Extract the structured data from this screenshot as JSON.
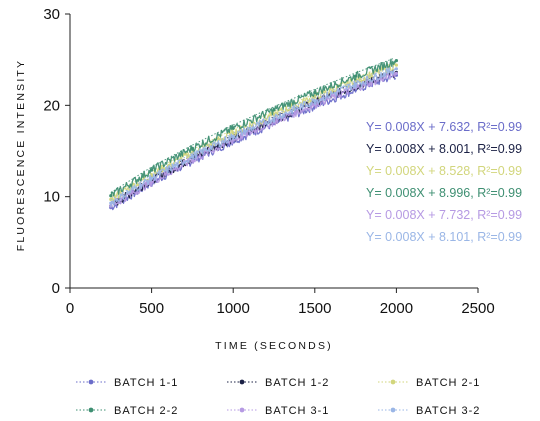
{
  "chart_data": {
    "type": "line",
    "xlabel": "TIME (SECONDS)",
    "ylabel": "FLUORESCENCE INTENSITY",
    "xlim": [
      0,
      2500
    ],
    "ylim": [
      0,
      30
    ],
    "xticks": [
      0,
      500,
      1000,
      1500,
      2000,
      2500
    ],
    "yticks": [
      0,
      10,
      20,
      30
    ],
    "grid": false,
    "legend_position": "bottom",
    "series": [
      {
        "name": "BATCH 1-1",
        "color": "#6a6cc9",
        "x": [
          250,
          500,
          750,
          1000,
          1250,
          1500,
          1750,
          2000
        ],
        "y": [
          8.8,
          11.5,
          13.9,
          16.1,
          18.0,
          19.9,
          21.7,
          23.3
        ],
        "equation": "Y= 0.008X + 7.632, R²=0.99"
      },
      {
        "name": "BATCH 1-2",
        "color": "#1b2145",
        "x": [
          250,
          500,
          750,
          1000,
          1250,
          1500,
          1750,
          2000
        ],
        "y": [
          9.0,
          11.8,
          14.2,
          16.4,
          18.4,
          20.3,
          22.1,
          23.6
        ],
        "equation": "Y= 0.008X + 8.001, R²=0.99"
      },
      {
        "name": "BATCH 2-1",
        "color": "#d2d67c",
        "x": [
          250,
          500,
          750,
          1000,
          1250,
          1500,
          1750,
          2000
        ],
        "y": [
          9.7,
          12.4,
          14.8,
          17.0,
          19.0,
          20.9,
          22.7,
          24.4
        ],
        "equation": "Y= 0.008X + 8.528, R²=0.99"
      },
      {
        "name": "BATCH 2-2",
        "color": "#3e8f72",
        "x": [
          250,
          500,
          750,
          1000,
          1250,
          1500,
          1750,
          2000
        ],
        "y": [
          10.1,
          12.9,
          15.3,
          17.5,
          19.5,
          21.4,
          23.2,
          24.9
        ],
        "equation": "Y= 0.008X + 8.996, R²=0.99"
      },
      {
        "name": "BATCH 3-1",
        "color": "#b69ae3",
        "x": [
          250,
          500,
          750,
          1000,
          1250,
          1500,
          1750,
          2000
        ],
        "y": [
          9.0,
          11.6,
          14.0,
          16.2,
          18.2,
          20.1,
          21.9,
          23.5
        ],
        "equation": "Y= 0.008X + 7.732, R²=0.99"
      },
      {
        "name": "BATCH 3-2",
        "color": "#9ab6e6",
        "x": [
          250,
          500,
          750,
          1000,
          1250,
          1500,
          1750,
          2000
        ],
        "y": [
          9.3,
          12.0,
          14.4,
          16.6,
          18.6,
          20.5,
          22.3,
          24.0
        ],
        "equation": "Y= 0.008X + 8.101, R²=0.99"
      }
    ]
  }
}
